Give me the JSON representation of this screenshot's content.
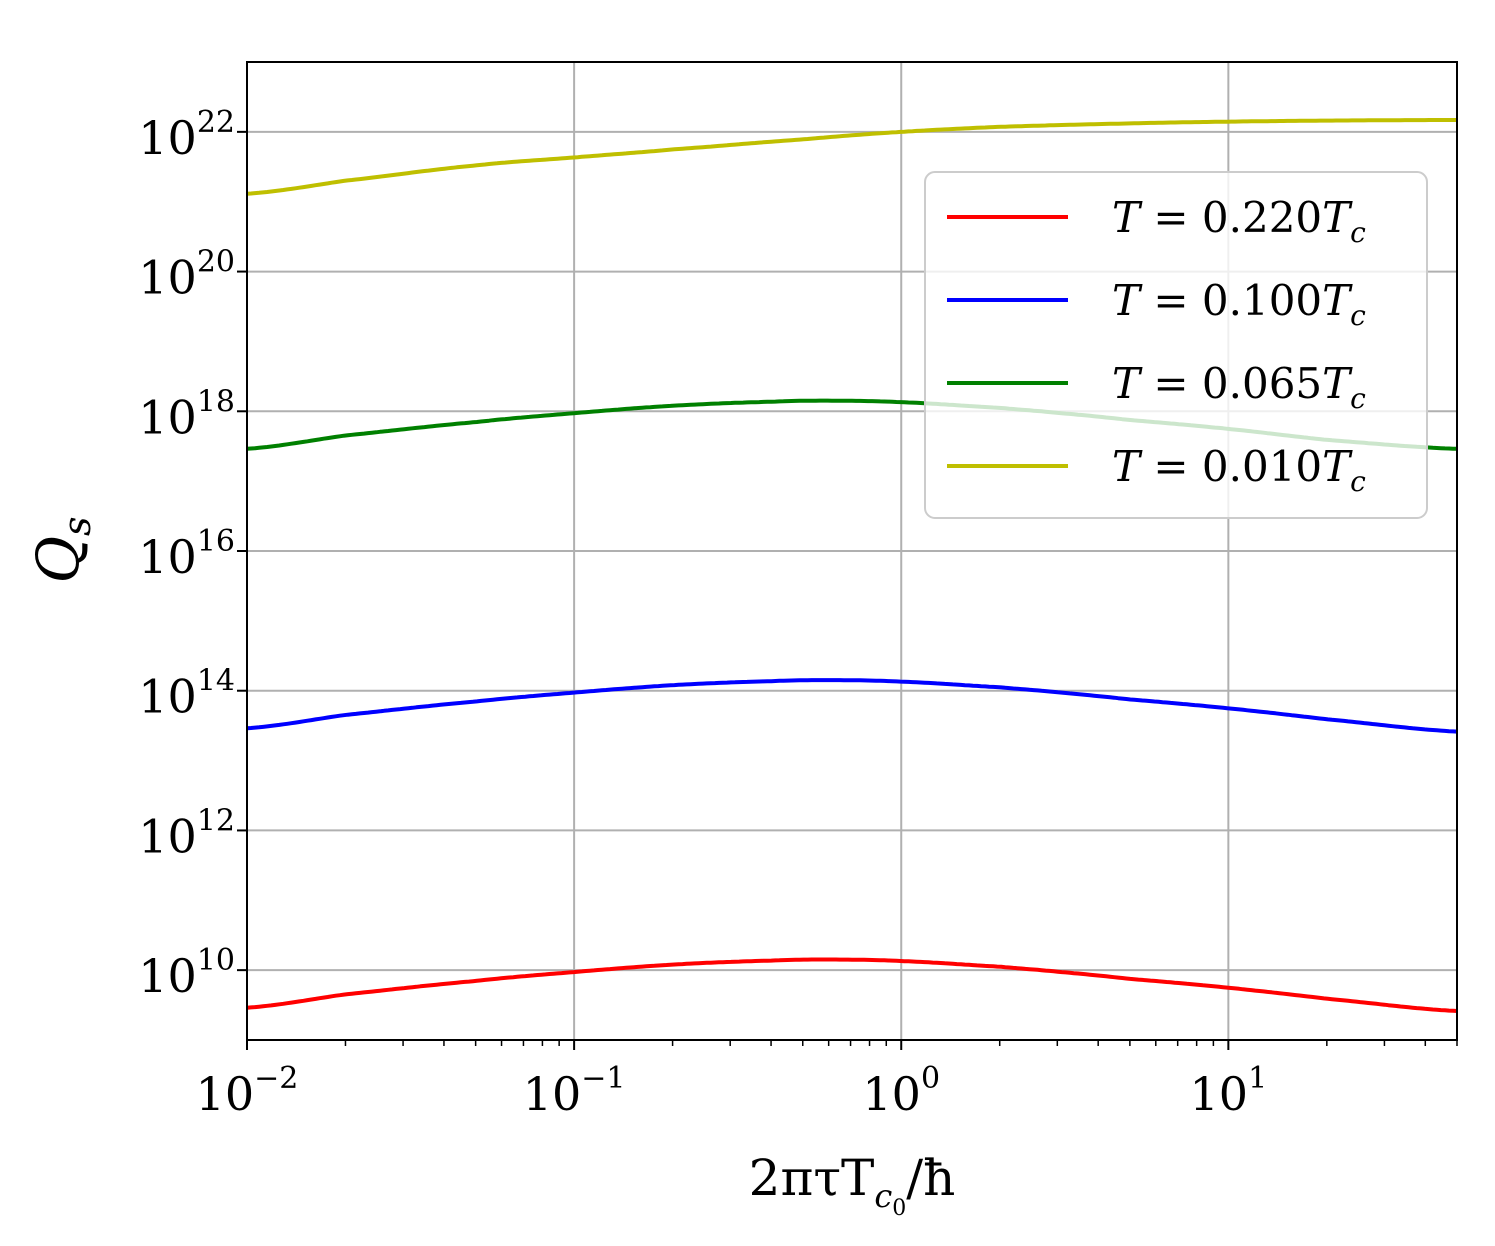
{
  "chart_data": {
    "type": "line",
    "xlabel": "2πτT_c0/ħ",
    "xlabel_parts": {
      "main": "2πτT",
      "sub1": "c",
      "sub2": "0",
      "tail": "/ħ"
    },
    "ylabel": "Q_s",
    "ylabel_parts": {
      "main": "Q",
      "sub": "s"
    },
    "x_scale": "log",
    "y_scale": "log",
    "xlim": [
      0.01,
      50
    ],
    "ylim": [
      1000000000.0,
      1e+23
    ],
    "grid": true,
    "legend_position": "upper-right",
    "x_ticks": [
      {
        "value": 0.01,
        "base": "10",
        "exp": "−2"
      },
      {
        "value": 0.1,
        "base": "10",
        "exp": "−1"
      },
      {
        "value": 1,
        "base": "10",
        "exp": "0"
      },
      {
        "value": 10,
        "base": "10",
        "exp": "1"
      }
    ],
    "y_ticks": [
      {
        "value": 10000000000.0,
        "base": "10",
        "exp": "10"
      },
      {
        "value": 1000000000000.0,
        "base": "10",
        "exp": "12"
      },
      {
        "value": 100000000000000.0,
        "base": "10",
        "exp": "14"
      },
      {
        "value": 1e+16,
        "base": "10",
        "exp": "16"
      },
      {
        "value": 1e+18,
        "base": "10",
        "exp": "18"
      },
      {
        "value": 1e+20,
        "base": "10",
        "exp": "20"
      },
      {
        "value": 1e+22,
        "base": "10",
        "exp": "22"
      }
    ],
    "series": [
      {
        "name": "T = 0.220T_c",
        "legend": {
          "lhs": "T",
          "eq": " = 0.220",
          "rhs": "T",
          "sub": "c"
        },
        "color": "#ff0000",
        "x": [
          0.01,
          0.02,
          0.05,
          0.1,
          0.2,
          0.4,
          0.6,
          1,
          2,
          3,
          5,
          10,
          20,
          50
        ],
        "y": [
          2900000000.0,
          4500000000.0,
          7000000000.0,
          9400000000.0,
          12000000000.0,
          13700000000.0,
          14200000000.0,
          13500000000.0,
          11200000000.0,
          9500000000.0,
          7500000000.0,
          5600000000.0,
          3900000000.0,
          2600000000.0
        ]
      },
      {
        "name": "T = 0.100T_c",
        "legend": {
          "lhs": "T",
          "eq": " = 0.100",
          "rhs": "T",
          "sub": "c"
        },
        "color": "#0000ff",
        "x": [
          0.01,
          0.02,
          0.05,
          0.1,
          0.2,
          0.4,
          0.6,
          1,
          2,
          3,
          5,
          10,
          20,
          50
        ],
        "y": [
          29000000000000.0,
          45000000000000.0,
          70000000000000.0,
          94000000000000.0,
          120000000000000.0,
          137000000000000.0,
          142000000000000.0,
          135000000000000.0,
          112000000000000.0,
          95000000000000.0,
          75000000000000.0,
          56000000000000.0,
          39000000000000.0,
          26000000000000.0
        ]
      },
      {
        "name": "T = 0.065T_c",
        "legend": {
          "lhs": "T",
          "eq": " = 0.065",
          "rhs": "T",
          "sub": "c"
        },
        "color": "#008000",
        "x": [
          0.01,
          0.02,
          0.05,
          0.1,
          0.2,
          0.4,
          0.6,
          1,
          2,
          3,
          5,
          10,
          20,
          50
        ],
        "y": [
          2.9e+17,
          4.5e+17,
          7e+17,
          9.4e+17,
          1.2e+18,
          1.37e+18,
          1.42e+18,
          1.35e+18,
          1.12e+18,
          9.5e+17,
          7.5e+17,
          5.6e+17,
          3.9e+17,
          2.9e+17
        ]
      },
      {
        "name": "T = 0.010T_c",
        "legend": {
          "lhs": "T",
          "eq": " = 0.010",
          "rhs": "T",
          "sub": "c"
        },
        "color": "#bfbf00",
        "x": [
          0.01,
          0.02,
          0.05,
          0.1,
          0.2,
          0.5,
          1,
          2,
          5,
          10,
          20,
          50
        ],
        "y": [
          1.3e+21,
          2e+21,
          3.3e+21,
          4.3e+21,
          5.6e+21,
          7.8e+21,
          1e+22,
          1.18e+22,
          1.32e+22,
          1.4e+22,
          1.45e+22,
          1.48e+22
        ]
      }
    ]
  }
}
